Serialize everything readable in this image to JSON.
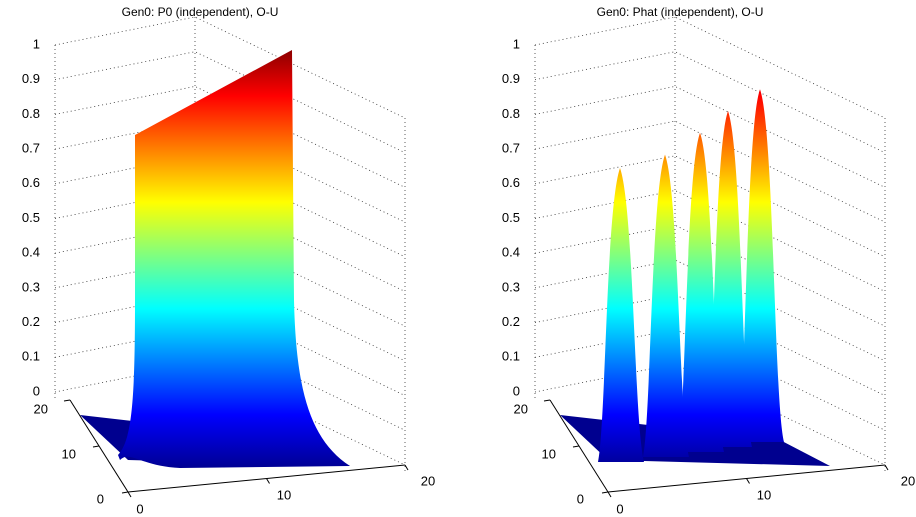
{
  "chart_data": [
    {
      "type": "surface",
      "title": "Gen0: P0 (independent), O-U",
      "xlim": [
        0,
        20
      ],
      "xticks": [
        0,
        10,
        20
      ],
      "ylim": [
        0,
        20
      ],
      "yticks": [
        0,
        10,
        20
      ],
      "zlim": [
        0,
        1
      ],
      "zticks": [
        0,
        0.1,
        0.2,
        0.3,
        0.4,
        0.5,
        0.6,
        0.7,
        0.8,
        0.9,
        1
      ],
      "grid": true,
      "colormap": "jet"
    },
    {
      "type": "surface",
      "title": "Gen0: Phat (independent), O-U",
      "xlim": [
        0,
        20
      ],
      "xticks": [
        0,
        10,
        20
      ],
      "ylim": [
        0,
        20
      ],
      "yticks": [
        0,
        10,
        20
      ],
      "zlim": [
        0,
        1
      ],
      "zticks": [
        0,
        0.1,
        0.2,
        0.3,
        0.4,
        0.5,
        0.6,
        0.7,
        0.8,
        0.9,
        1
      ],
      "grid": true,
      "colormap": "jet",
      "peaks": [
        0.7,
        0.72,
        0.76,
        0.8,
        0.84
      ]
    }
  ]
}
